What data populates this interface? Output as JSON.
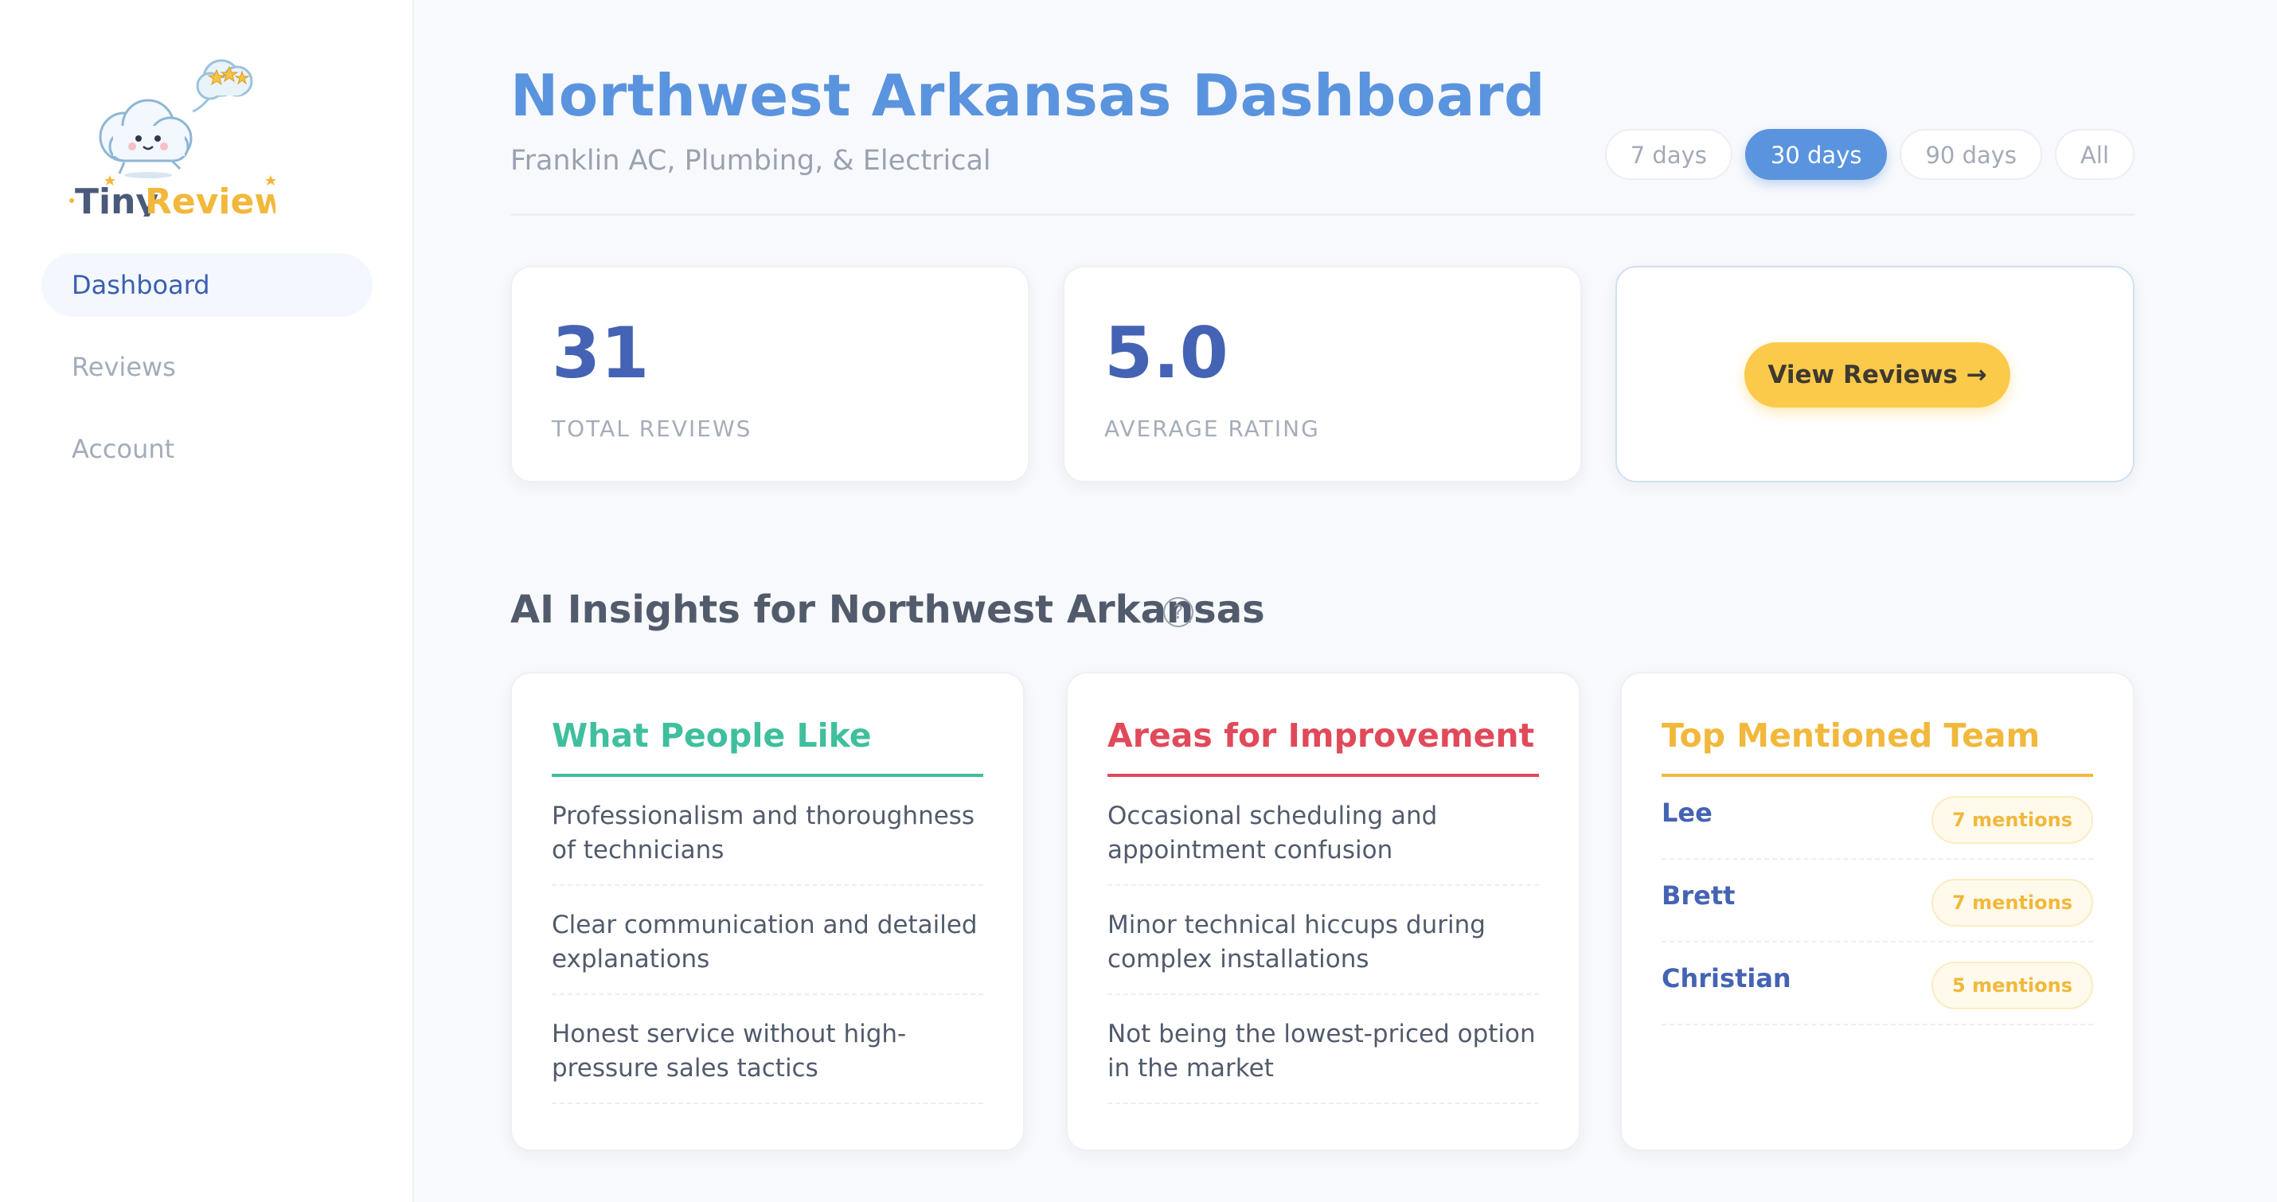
{
  "brand": {
    "name_part1": "Tiny",
    "name_part2": "Reviews"
  },
  "sidebar": {
    "items": [
      {
        "label": "Dashboard",
        "active": true
      },
      {
        "label": "Reviews",
        "active": false
      },
      {
        "label": "Account",
        "active": false
      }
    ]
  },
  "header": {
    "title": "Northwest Arkansas Dashboard",
    "subtitle": "Franklin AC, Plumbing, & Electrical"
  },
  "date_ranges": [
    {
      "label": "7 days",
      "active": false
    },
    {
      "label": "30 days",
      "active": true
    },
    {
      "label": "90 days",
      "active": false
    },
    {
      "label": "All",
      "active": false
    }
  ],
  "stats": {
    "total_reviews": {
      "value": "31",
      "label": "TOTAL REVIEWS"
    },
    "average_rating": {
      "value": "5.0",
      "label": "AVERAGE RATING"
    },
    "view_reviews_label": "View Reviews →"
  },
  "insights": {
    "title": "AI Insights for Northwest Arkansas",
    "help_symbol": "?",
    "likes": {
      "title": "What People Like",
      "items": [
        "Professionalism and thoroughness of technicians",
        "Clear communication and detailed explanations",
        "Honest service without high-pressure sales tactics"
      ]
    },
    "improvements": {
      "title": "Areas for Improvement",
      "items": [
        "Occasional scheduling and appointment confusion",
        "Minor technical hiccups during complex installations",
        "Not being the lowest-priced option in the market"
      ]
    },
    "team": {
      "title": "Top Mentioned Team",
      "members": [
        {
          "name": "Lee",
          "mentions": "7 mentions"
        },
        {
          "name": "Brett",
          "mentions": "7 mentions"
        },
        {
          "name": "Christian",
          "mentions": "5 mentions"
        }
      ]
    }
  },
  "colors": {
    "accent_blue": "#5b94de",
    "value_blue": "#4563b4",
    "like_green": "#3fbf9d",
    "improve_red": "#e04a5a",
    "team_gold": "#f2b83b",
    "cta_yellow": "#fcca4b"
  },
  "icons": {
    "logo": "cloud-mascot-with-stars-icon",
    "help": "question-circle-icon"
  }
}
